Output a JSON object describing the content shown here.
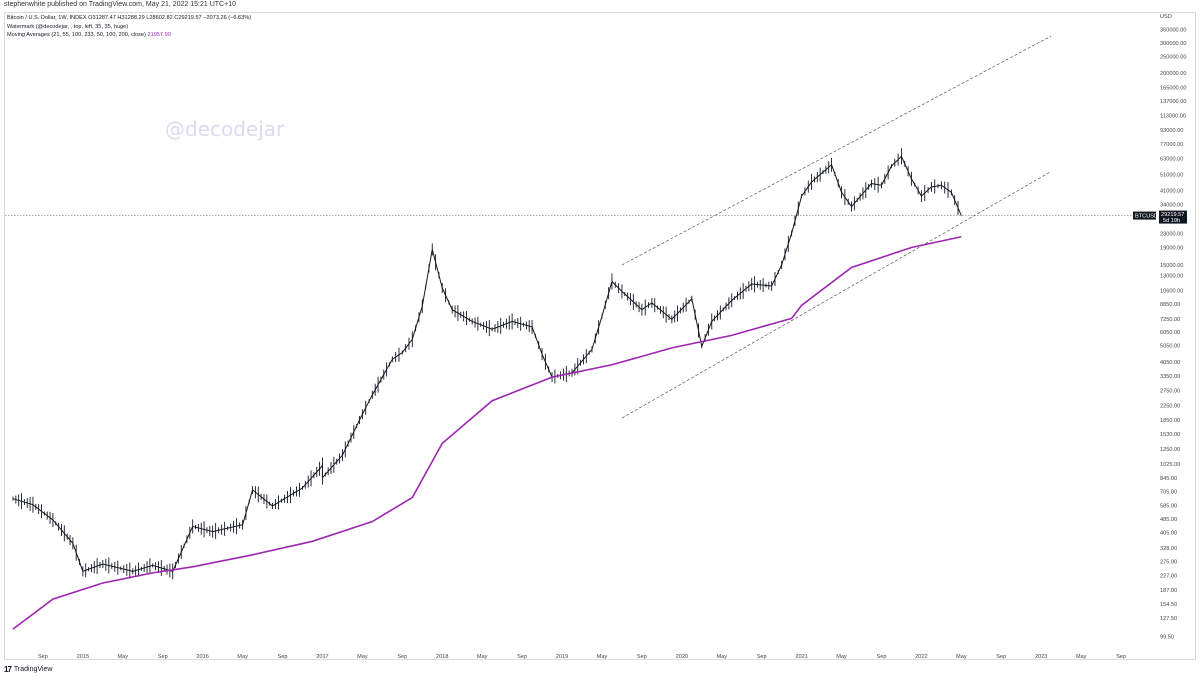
{
  "header": {
    "attribution": "stephenwhite published on TradingView.com, May 21, 2022 15:21 UTC+10"
  },
  "legend": {
    "symbol_line": "Bitcoin / U.S. Dollar, 1W, INDEX  O31287.47  H31288.29  L28602.82  C29219.57  −2073.26 (−6.63%)",
    "watermark_line": "Watermark (@decodejar, , top, left, 35, 35, huge)",
    "ma_label": "Moving Averages (21, 55, 100, 233, 50, 100, 200, close)",
    "ma_value": "21957.99"
  },
  "watermark_text": "@decodejar",
  "footer": {
    "logo": "17",
    "brand": "TradingView"
  },
  "chart_data": {
    "type": "line",
    "symbol": "BTCUSD",
    "interval": "1W",
    "currency": "USD",
    "last_price": "29219.57",
    "last_price_sub": "5d 19h",
    "scale": "log",
    "ylim": [
      83,
      450000
    ],
    "y_ticks": [
      "360000.00",
      "300000.00",
      "250000.00",
      "200000.00",
      "165000.00",
      "137000.00",
      "113000.00",
      "93000.00",
      "77000.00",
      "63000.00",
      "51000.00",
      "41000.00",
      "34000.00",
      "23000.00",
      "19000.00",
      "15000.00",
      "13000.00",
      "10600.00",
      "8850.00",
      "7250.00",
      "6050.00",
      "5050.00",
      "4050.00",
      "3350.00",
      "2750.00",
      "2250.00",
      "1850.00",
      "1530.00",
      "1250.00",
      "1025.00",
      "845.00",
      "705.00",
      "585.00",
      "485.00",
      "405.00",
      "328.00",
      "275.00",
      "227.00",
      "187.00",
      "154.50",
      "127.50",
      "99.50"
    ],
    "x_ticks": [
      "Sep",
      "2015",
      "May",
      "Sep",
      "2016",
      "May",
      "Sep",
      "2017",
      "May",
      "Sep",
      "2018",
      "May",
      "Sep",
      "2019",
      "May",
      "Sep",
      "2020",
      "May",
      "Sep",
      "2021",
      "May",
      "Sep",
      "2022",
      "May",
      "Sep",
      "2023",
      "May",
      "Sep"
    ],
    "x_tick_dates": [
      "2014-09",
      "2015-01",
      "2015-05",
      "2015-09",
      "2016-01",
      "2016-05",
      "2016-09",
      "2017-01",
      "2017-05",
      "2017-09",
      "2018-01",
      "2018-05",
      "2018-09",
      "2019-01",
      "2019-05",
      "2019-09",
      "2020-01",
      "2020-05",
      "2020-09",
      "2021-01",
      "2021-05",
      "2021-09",
      "2022-01",
      "2022-05",
      "2022-09",
      "2023-01",
      "2023-05",
      "2023-09"
    ],
    "price_series": {
      "x": [
        "2014-06",
        "2014-08",
        "2014-10",
        "2014-12",
        "2015-01",
        "2015-03",
        "2015-06",
        "2015-08",
        "2015-10",
        "2015-12",
        "2016-02",
        "2016-05",
        "2016-06",
        "2016-08",
        "2016-11",
        "2017-01",
        "2017-01",
        "2017-03",
        "2017-05",
        "2017-06",
        "2017-08",
        "2017-09",
        "2017-10",
        "2017-11",
        "2017-12",
        "2018-01",
        "2018-02",
        "2018-04",
        "2018-06",
        "2018-08",
        "2018-10",
        "2018-11",
        "2018-12",
        "2019-02",
        "2019-04",
        "2019-05",
        "2019-06",
        "2019-07",
        "2019-09",
        "2019-10",
        "2019-12",
        "2020-02",
        "2020-03",
        "2020-04",
        "2020-06",
        "2020-08",
        "2020-10",
        "2020-11",
        "2020-12",
        "2021-01",
        "2021-02",
        "2021-04",
        "2021-05",
        "2021-06",
        "2021-08",
        "2021-09",
        "2021-10",
        "2021-11",
        "2021-12",
        "2022-01",
        "2022-02",
        "2022-03",
        "2022-04",
        "2022-05"
      ],
      "y": [
        640,
        590,
        480,
        350,
        240,
        265,
        240,
        260,
        240,
        440,
        410,
        450,
        720,
        580,
        740,
        1000,
        850,
        1150,
        2000,
        2600,
        4200,
        4600,
        5500,
        8600,
        18500,
        11000,
        8200,
        7000,
        6300,
        7000,
        6500,
        4500,
        3300,
        3500,
        4800,
        7500,
        12000,
        10500,
        8200,
        9000,
        7200,
        9500,
        5000,
        7000,
        9300,
        11600,
        11300,
        15000,
        23000,
        38000,
        46000,
        58000,
        40000,
        33000,
        45000,
        44000,
        57000,
        65000,
        48000,
        38000,
        43000,
        44000,
        40000,
        29219
      ]
    },
    "moving_average": {
      "name": "MA 200",
      "color": "#9c27b0",
      "x": [
        "2014-06",
        "2014-10",
        "2015-03",
        "2015-08",
        "2015-12",
        "2016-06",
        "2016-12",
        "2017-06",
        "2017-10",
        "2018-01",
        "2018-06",
        "2018-12",
        "2019-06",
        "2019-12",
        "2020-06",
        "2020-12",
        "2021-01",
        "2021-06",
        "2021-12",
        "2022-05"
      ],
      "y": [
        110,
        165,
        205,
        235,
        255,
        300,
        360,
        470,
        650,
        1350,
        2400,
        3300,
        3900,
        4900,
        5800,
        7300,
        8700,
        14500,
        19000,
        21957.99
      ]
    },
    "trendlines": [
      {
        "x": [
          "2019-07",
          "2023-02"
        ],
        "y": [
          15000,
          330000
        ]
      },
      {
        "x": [
          "2019-07",
          "2023-02"
        ],
        "y": [
          1900,
          53000
        ]
      }
    ],
    "price_line": 29219.57,
    "grid": false,
    "legend": "top-left"
  }
}
